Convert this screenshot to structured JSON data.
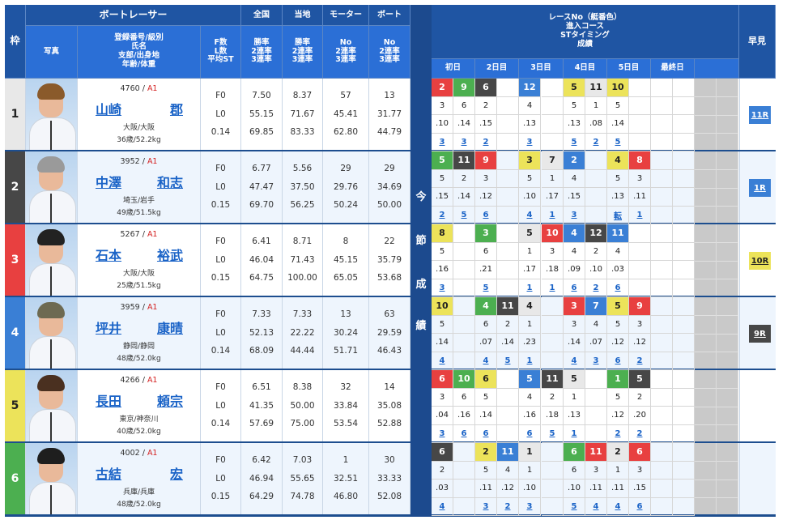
{
  "colors": {
    "header_dark": "#1f55a3",
    "header_light": "#2b6fd6",
    "frame": "#1d4e8f",
    "class_red": "#d42020",
    "link_blue": "#1a63c7",
    "boat": {
      "1": {
        "bg": "#e8e8e8",
        "fg": "#222222"
      },
      "2": {
        "bg": "#474747",
        "fg": "#ffffff"
      },
      "3": {
        "bg": "#e84040",
        "fg": "#ffffff"
      },
      "4": {
        "bg": "#3a7fd5",
        "fg": "#ffffff"
      },
      "5": {
        "bg": "#ece35a",
        "fg": "#222222"
      },
      "6": {
        "bg": "#4caf50",
        "fg": "#ffffff"
      }
    }
  },
  "header": {
    "waku": "枠",
    "racer_group": "ボートレーサー",
    "zenkoku": "全国",
    "touchi": "当地",
    "motor": "モーター",
    "boat": "ボート",
    "photo": "写真",
    "info_lines": [
      "登録番号/級別",
      "氏名",
      "支部/出身地",
      "年齢/体重"
    ],
    "fl_lines": [
      "F数",
      "L数",
      "平均ST"
    ],
    "zenkoku_lines": [
      "勝率",
      "2連率",
      "3連率"
    ],
    "touchi_lines": [
      "勝率",
      "2連率",
      "3連率"
    ],
    "motor_lines": [
      "No",
      "2連率",
      "3連率"
    ],
    "boat_lines": [
      "No",
      "2連率",
      "3連率"
    ],
    "race_lines": [
      "レースNo（艇番色）",
      "進入コース",
      "STタイミング",
      "成績"
    ],
    "hayami": "早見",
    "days": [
      "初日",
      "2日目",
      "3日目",
      "4日目",
      "5日目",
      "最終日"
    ],
    "vertical_label": [
      "今",
      "節",
      "成",
      "績"
    ]
  },
  "racers": [
    {
      "waku": "1",
      "reg": "4760",
      "cls": "A1",
      "name_sei": "山崎",
      "name_mei": "郡",
      "loc": "大阪/大阪",
      "age": "36歳/52.2kg",
      "fl": [
        "F0",
        "L0",
        "0.14"
      ],
      "zenkoku": [
        "7.50",
        "55.15",
        "69.85"
      ],
      "touchi": [
        "8.37",
        "71.67",
        "83.33"
      ],
      "motor": [
        "57",
        "45.41",
        "62.80"
      ],
      "boat": [
        "13",
        "31.77",
        "44.79"
      ],
      "hayami": "11R",
      "races": [
        {
          "r": "2",
          "b": 3,
          "c": "3",
          "st": ".10",
          "res": "3"
        },
        {
          "r": "9",
          "b": 6,
          "c": "6",
          "st": ".14",
          "res": "3"
        },
        {
          "r": "6",
          "b": 2,
          "c": "2",
          "st": ".15",
          "res": "2"
        },
        null,
        {
          "r": "12",
          "b": 4,
          "c": "4",
          "st": ".13",
          "res": "3"
        },
        null,
        {
          "r": "5",
          "b": 5,
          "c": "5",
          "st": ".13",
          "res": "5"
        },
        {
          "r": "11",
          "b": 1,
          "c": "1",
          "st": ".08",
          "res": "2"
        },
        {
          "r": "10",
          "b": 5,
          "c": "5",
          "st": ".14",
          "res": "5"
        },
        null,
        null,
        null
      ]
    },
    {
      "waku": "2",
      "reg": "3952",
      "cls": "A1",
      "name_sei": "中澤",
      "name_mei": "和志",
      "loc": "埼玉/岩手",
      "age": "49歳/51.5kg",
      "fl": [
        "F0",
        "L0",
        "0.15"
      ],
      "zenkoku": [
        "6.77",
        "47.47",
        "69.70"
      ],
      "touchi": [
        "5.56",
        "37.50",
        "56.25"
      ],
      "motor": [
        "29",
        "29.76",
        "50.24"
      ],
      "boat": [
        "29",
        "34.69",
        "50.00"
      ],
      "hayami": "1R",
      "races": [
        {
          "r": "5",
          "b": 6,
          "c": "5",
          "st": ".15",
          "res": "2"
        },
        {
          "r": "11",
          "b": 2,
          "c": "2",
          "st": ".14",
          "res": "5"
        },
        {
          "r": "9",
          "b": 3,
          "c": "3",
          "st": ".12",
          "res": "6"
        },
        null,
        {
          "r": "3",
          "b": 5,
          "c": "5",
          "st": ".10",
          "res": "4"
        },
        {
          "r": "7",
          "b": 1,
          "c": "1",
          "st": ".17",
          "res": "1"
        },
        {
          "r": "2",
          "b": 4,
          "c": "4",
          "st": ".15",
          "res": "3"
        },
        null,
        {
          "r": "4",
          "b": 5,
          "c": "5",
          "st": ".13",
          "res": "転"
        },
        {
          "r": "8",
          "b": 3,
          "c": "3",
          "st": ".11",
          "res": "1"
        },
        null,
        null
      ]
    },
    {
      "waku": "3",
      "reg": "5267",
      "cls": "A1",
      "name_sei": "石本",
      "name_mei": "裕武",
      "loc": "大阪/大阪",
      "age": "25歳/51.5kg",
      "fl": [
        "F0",
        "L0",
        "0.15"
      ],
      "zenkoku": [
        "6.41",
        "46.04",
        "64.75"
      ],
      "touchi": [
        "8.71",
        "71.43",
        "100.00"
      ],
      "motor": [
        "8",
        "45.15",
        "65.05"
      ],
      "boat": [
        "22",
        "35.79",
        "53.68"
      ],
      "hayami": "10R",
      "races": [
        {
          "r": "8",
          "b": 5,
          "c": "5",
          "st": ".16",
          "res": "3"
        },
        null,
        {
          "r": "3",
          "b": 6,
          "c": "6",
          "st": ".21",
          "res": "5"
        },
        null,
        {
          "r": "5",
          "b": 1,
          "c": "1",
          "st": ".17",
          "res": "1"
        },
        {
          "r": "10",
          "b": 3,
          "c": "3",
          "st": ".18",
          "res": "1"
        },
        {
          "r": "4",
          "b": 4,
          "c": "4",
          "st": ".09",
          "res": "6"
        },
        {
          "r": "12",
          "b": 2,
          "c": "2",
          "st": ".10",
          "res": "2"
        },
        {
          "r": "11",
          "b": 4,
          "c": "4",
          "st": ".03",
          "res": "6"
        },
        null,
        null,
        null
      ]
    },
    {
      "waku": "4",
      "reg": "3959",
      "cls": "A1",
      "name_sei": "坪井",
      "name_mei": "康晴",
      "loc": "静岡/静岡",
      "age": "48歳/52.0kg",
      "fl": [
        "F0",
        "L0",
        "0.14"
      ],
      "zenkoku": [
        "7.33",
        "52.13",
        "68.09"
      ],
      "touchi": [
        "7.33",
        "22.22",
        "44.44"
      ],
      "motor": [
        "13",
        "30.24",
        "51.71"
      ],
      "boat": [
        "63",
        "29.59",
        "46.43"
      ],
      "hayami": "9R",
      "races": [
        {
          "r": "10",
          "b": 5,
          "c": "5",
          "st": ".14",
          "res": "4"
        },
        null,
        {
          "r": "4",
          "b": 6,
          "c": "6",
          "st": ".07",
          "res": "4"
        },
        {
          "r": "11",
          "b": 2,
          "c": "2",
          "st": ".14",
          "res": "5"
        },
        {
          "r": "4",
          "b": 1,
          "c": "1",
          "st": ".23",
          "res": "1"
        },
        null,
        {
          "r": "3",
          "b": 3,
          "c": "3",
          "st": ".14",
          "res": "4"
        },
        {
          "r": "7",
          "b": 4,
          "c": "4",
          "st": ".07",
          "res": "3"
        },
        {
          "r": "5",
          "b": 5,
          "c": "5",
          "st": ".12",
          "res": "6"
        },
        {
          "r": "9",
          "b": 3,
          "c": "3",
          "st": ".12",
          "res": "2"
        },
        null,
        null
      ]
    },
    {
      "waku": "5",
      "reg": "4266",
      "cls": "A1",
      "name_sei": "長田",
      "name_mei": "頼宗",
      "loc": "東京/神奈川",
      "age": "40歳/52.0kg",
      "fl": [
        "F0",
        "L0",
        "0.14"
      ],
      "zenkoku": [
        "6.51",
        "41.35",
        "57.69"
      ],
      "touchi": [
        "8.38",
        "50.00",
        "75.00"
      ],
      "motor": [
        "32",
        "33.84",
        "53.54"
      ],
      "boat": [
        "14",
        "35.08",
        "52.88"
      ],
      "hayami": "",
      "races": [
        {
          "r": "6",
          "b": 3,
          "c": "3",
          "st": ".04",
          "res": "3"
        },
        {
          "r": "10",
          "b": 6,
          "c": "6",
          "st": ".16",
          "res": "6"
        },
        {
          "r": "6",
          "b": 5,
          "c": "5",
          "st": ".14",
          "res": "6"
        },
        null,
        {
          "r": "5",
          "b": 4,
          "c": "4",
          "st": ".16",
          "res": "6"
        },
        {
          "r": "11",
          "b": 2,
          "c": "2",
          "st": ".18",
          "res": "5"
        },
        {
          "r": "5",
          "b": 1,
          "c": "1",
          "st": ".13",
          "res": "1"
        },
        null,
        {
          "r": "1",
          "b": 6,
          "c": "5",
          "st": ".12",
          "res": "2"
        },
        {
          "r": "5",
          "b": 2,
          "c": "2",
          "st": ".20",
          "res": "2"
        },
        null,
        null
      ]
    },
    {
      "waku": "6",
      "reg": "4002",
      "cls": "A1",
      "name_sei": "古結",
      "name_mei": "宏",
      "loc": "兵庫/兵庫",
      "age": "48歳/52.0kg",
      "fl": [
        "F0",
        "L0",
        "0.15"
      ],
      "zenkoku": [
        "6.42",
        "46.94",
        "64.29"
      ],
      "touchi": [
        "7.03",
        "55.65",
        "74.78"
      ],
      "motor": [
        "1",
        "32.51",
        "46.80"
      ],
      "boat": [
        "30",
        "33.33",
        "52.08"
      ],
      "hayami": "",
      "races": [
        {
          "r": "6",
          "b": 2,
          "c": "2",
          "st": ".03",
          "res": "4"
        },
        null,
        {
          "r": "2",
          "b": 5,
          "c": "5",
          "st": ".11",
          "res": "3"
        },
        {
          "r": "11",
          "b": 4,
          "c": "4",
          "st": ".12",
          "res": "2"
        },
        {
          "r": "1",
          "b": 1,
          "c": "1",
          "st": ".10",
          "res": "3"
        },
        null,
        {
          "r": "6",
          "b": 6,
          "c": "6",
          "st": ".10",
          "res": "5"
        },
        {
          "r": "11",
          "b": 3,
          "c": "3",
          "st": ".11",
          "res": "4"
        },
        {
          "r": "2",
          "b": 1,
          "c": "1",
          "st": ".11",
          "res": "4"
        },
        {
          "r": "6",
          "b": 3,
          "c": "3",
          "st": ".15",
          "res": "6"
        },
        null,
        null
      ]
    }
  ]
}
